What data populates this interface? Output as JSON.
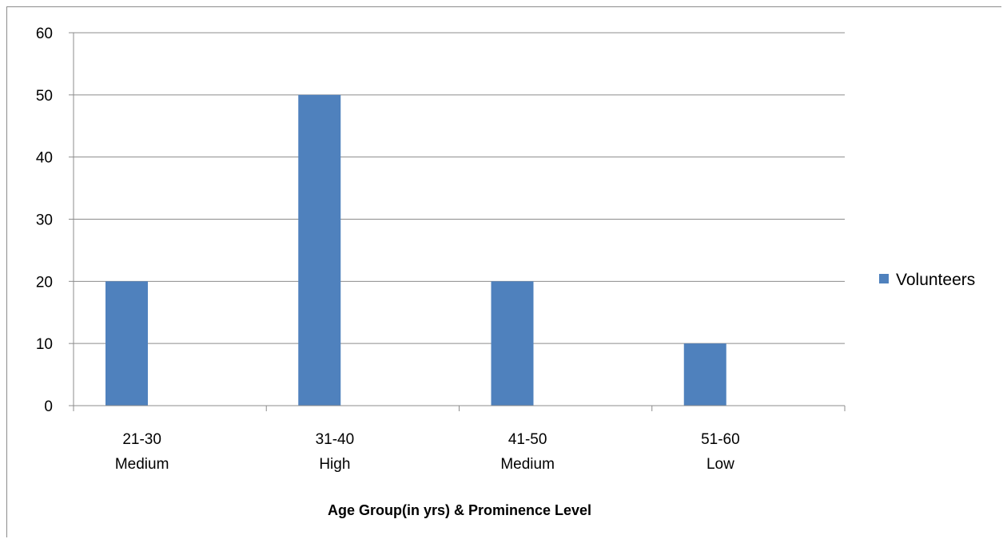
{
  "chart_data": {
    "type": "bar",
    "categories": [
      [
        "21-30",
        "Medium"
      ],
      [
        "31-40",
        "High"
      ],
      [
        "41-50",
        "Medium"
      ],
      [
        "51-60",
        "Low"
      ]
    ],
    "series": [
      {
        "name": "Volunteers",
        "values": [
          20,
          50,
          20,
          10
        ],
        "color": "#4f81bd"
      }
    ],
    "title": "",
    "xlabel": "Age Group(in yrs) & Prominence Level",
    "ylabel": "",
    "ylim": [
      0,
      60
    ],
    "yticks": [
      "0",
      "10",
      "20",
      "30",
      "40",
      "50",
      "60"
    ],
    "grid": true,
    "legend_position": "right"
  },
  "colors": {
    "bar": "#4f81bd",
    "grid": "#8c8c8c",
    "axis": "#8c8c8c"
  }
}
